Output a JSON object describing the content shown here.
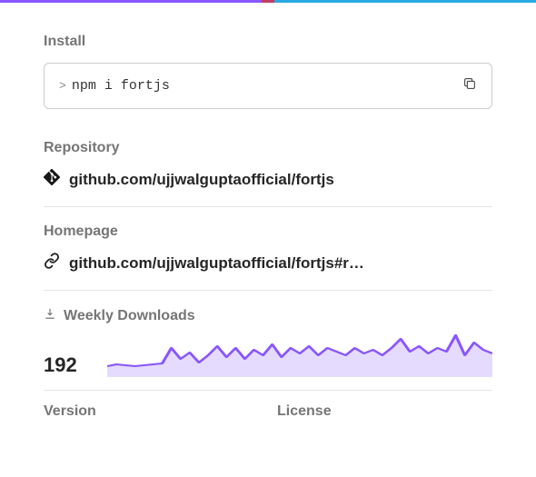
{
  "gradient": {
    "left": "#8956ff",
    "mid": "#c63b64",
    "right": "#29abe2"
  },
  "install": {
    "label": "Install",
    "prompt": ">",
    "command": "npm i fortjs"
  },
  "repository": {
    "label": "Repository",
    "url": "github.com/ujjwalguptaofficial/fortjs"
  },
  "homepage": {
    "label": "Homepage",
    "url": "github.com/ujjwalguptaofficial/fortjs#r…"
  },
  "downloads": {
    "label": "Weekly Downloads",
    "count": "192",
    "sparkline": {
      "stroke": "#8956ff",
      "fill": "#e5dbff",
      "stroke_width": 2,
      "points": [
        10,
        12,
        11,
        10,
        11,
        12,
        13,
        30,
        18,
        25,
        14,
        22,
        32,
        20,
        30,
        18,
        28,
        22,
        34,
        20,
        30,
        24,
        32,
        22,
        30,
        26,
        22,
        30,
        24,
        28,
        22,
        30,
        40,
        26,
        32,
        24,
        30,
        26,
        44,
        22,
        36,
        28,
        24
      ]
    }
  },
  "version": {
    "label": "Version"
  },
  "license": {
    "label": "License"
  }
}
